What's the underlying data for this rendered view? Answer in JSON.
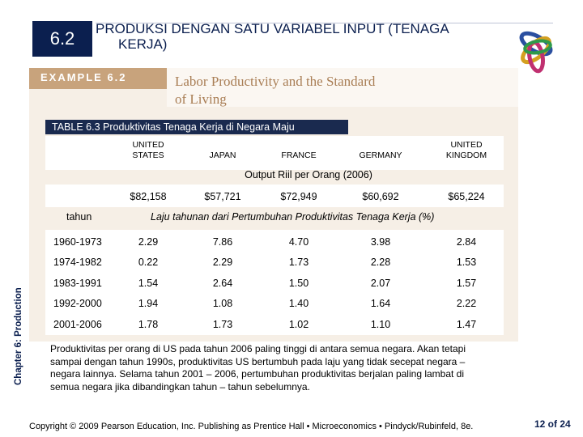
{
  "slide": {
    "section_number": "6.2",
    "title_line1": "PRODUKSI DENGAN SATU VARIABEL INPUT (TENAGA",
    "title_line2": "KERJA)",
    "example_label": "EXAMPLE 6.2",
    "example_title_line1": "Labor Productivity and the Standard",
    "example_title_line2": "of Living",
    "side_label": "Chapter 6:  Production",
    "page_number": "12 of 24",
    "footer": "Copyright © 2009 Pearson Education, Inc. Publishing as Prentice Hall • Microeconomics • Pindyck/Rubinfeld, 8e.",
    "note": "Produktivitas per orang di US pada tahun 2006 paling tinggi di antara semua negara. Akan tetapi sampai dengan tahun 1990s, produktivitas US bertumbuh pada laju yang tidak secepat negara – negara lainnya. Selama tahun 2001 – 2006, pertumbuhan produktivitas berjalan paling lambat di semua negara jika dibandingkan tahun – tahun sebelumnya."
  },
  "table": {
    "caption": "TABLE 6.3   Produktivitas Tenaga Kerja di Negara Maju",
    "countries": [
      {
        "l1": "UNITED",
        "l2": "STATES"
      },
      {
        "l1": "",
        "l2": "JAPAN"
      },
      {
        "l1": "",
        "l2": "FRANCE"
      },
      {
        "l1": "",
        "l2": "GERMANY"
      },
      {
        "l1": "UNITED",
        "l2": "KINGDOM"
      }
    ],
    "output_header": "Output Riil per Orang (2006)",
    "output_values": [
      "$82,158",
      "$57,721",
      "$72,949",
      "$60,692",
      "$65,224"
    ],
    "year_header": "tahun",
    "growth_header": "Laju tahunan dari Pertumbuhan Produktivitas Tenaga Kerja (%)",
    "rows": [
      {
        "period": "1960-1973",
        "values": [
          "2.29",
          "7.86",
          "4.70",
          "3.98",
          "2.84"
        ]
      },
      {
        "period": "1974-1982",
        "values": [
          "0.22",
          "2.29",
          "1.73",
          "2.28",
          "1.53"
        ]
      },
      {
        "period": "1983-1991",
        "values": [
          "1.54",
          "2.64",
          "1.50",
          "2.07",
          "1.57"
        ]
      },
      {
        "period": "1992-2000",
        "values": [
          "1.94",
          "1.08",
          "1.40",
          "1.64",
          "2.22"
        ]
      },
      {
        "period": "2001-2006",
        "values": [
          "1.78",
          "1.73",
          "1.02",
          "1.10",
          "1.47"
        ]
      }
    ]
  },
  "colors": {
    "navy": "#0b1f4f",
    "tan": "#c8a37c",
    "panel": "#f6efe6"
  }
}
